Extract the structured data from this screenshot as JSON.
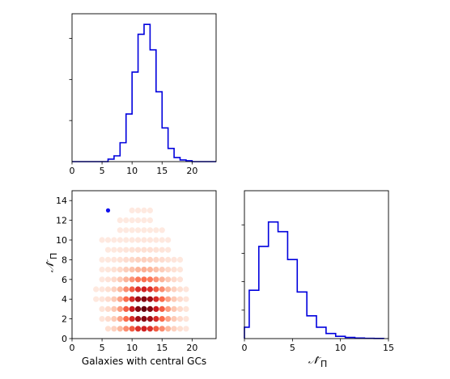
{
  "chart_data": [
    {
      "id": "top_hist",
      "type": "step-histogram",
      "color": "#0000dd",
      "x_range": [
        0,
        24
      ],
      "y_range": [
        0,
        0.18
      ],
      "xticks": [
        0,
        5,
        10,
        15,
        20
      ],
      "xtick_labels": [
        "0",
        "5",
        "10",
        "15",
        "20"
      ],
      "y_tick_values": [
        0.05,
        0.1,
        0.15
      ],
      "bin_edges": [
        0,
        1,
        2,
        3,
        4,
        5,
        6,
        7,
        8,
        9,
        10,
        11,
        12,
        13,
        14,
        15,
        16,
        17,
        18,
        19,
        20,
        21,
        22,
        23,
        24
      ],
      "values": [
        0,
        0,
        0,
        0,
        0,
        0,
        0.003,
        0.007,
        0.023,
        0.058,
        0.109,
        0.155,
        0.167,
        0.136,
        0.085,
        0.041,
        0.016,
        0.005,
        0.002,
        0.001,
        0,
        0,
        0,
        0
      ]
    },
    {
      "id": "scatter",
      "type": "heatmap-scatter",
      "x_range": [
        0,
        24
      ],
      "y_range": [
        0,
        15
      ],
      "xticks": [
        0,
        5,
        10,
        15,
        20
      ],
      "xtick_labels": [
        "0",
        "5",
        "10",
        "15",
        "20"
      ],
      "yticks": [
        0,
        2,
        4,
        6,
        8,
        10,
        12,
        14
      ],
      "ytick_labels": [
        "0",
        "2",
        "4",
        "6",
        "8",
        "10",
        "12",
        "14"
      ],
      "xlabel": "Galaxies with central GCs",
      "ylabel": "𝒩̂",
      "ylabel_subscript": "Π",
      "highlight_point": {
        "x": 6,
        "y": 13,
        "color": "#1010ee"
      },
      "x_center": 12,
      "y_center": 3,
      "rows": [
        {
          "y": 1,
          "x_min": 6,
          "x_max": 19
        },
        {
          "y": 2,
          "x_min": 5,
          "x_max": 19
        },
        {
          "y": 3,
          "x_min": 5,
          "x_max": 19
        },
        {
          "y": 4,
          "x_min": 4,
          "x_max": 19
        },
        {
          "y": 5,
          "x_min": 4,
          "x_max": 19
        },
        {
          "y": 6,
          "x_min": 5,
          "x_max": 18
        },
        {
          "y": 7,
          "x_min": 5,
          "x_max": 18
        },
        {
          "y": 8,
          "x_min": 5,
          "x_max": 18
        },
        {
          "y": 9,
          "x_min": 6,
          "x_max": 16
        },
        {
          "y": 10,
          "x_min": 5,
          "x_max": 16
        },
        {
          "y": 11,
          "x_min": 8,
          "x_max": 15
        },
        {
          "y": 12,
          "x_min": 8,
          "x_max": 13
        },
        {
          "y": 13,
          "x_min": 10,
          "x_max": 13
        }
      ]
    },
    {
      "id": "right_hist",
      "type": "step-histogram",
      "color": "#0000dd",
      "x_range": [
        0,
        15
      ],
      "y_range": [
        0,
        0.26
      ],
      "xticks": [
        0,
        5,
        10,
        15
      ],
      "xtick_labels": [
        "0",
        "5",
        "10",
        "15"
      ],
      "y_tick_values": [
        0.05,
        0.1,
        0.15,
        0.2
      ],
      "xlabel": "𝒩̂",
      "xlabel_subscript": "Π",
      "bin_edges": [
        0,
        0.5,
        1.5,
        2.5,
        3.5,
        4.5,
        5.5,
        6.5,
        7.5,
        8.5,
        9.5,
        10.5,
        11.5,
        12.5,
        13.5,
        14.5
      ],
      "values": [
        0.02,
        0.085,
        0.162,
        0.205,
        0.188,
        0.139,
        0.082,
        0.04,
        0.02,
        0.009,
        0.004,
        0.002,
        0.001,
        0.0005,
        0.0003
      ]
    }
  ]
}
